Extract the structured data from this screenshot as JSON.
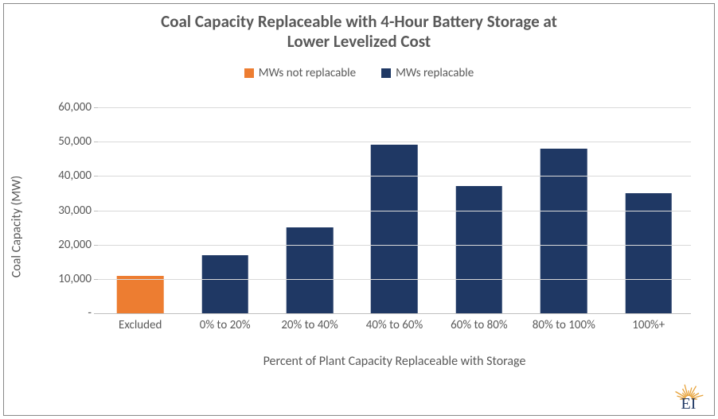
{
  "chart": {
    "type": "bar",
    "title_line1": "Coal Capacity Replaceable with 4-Hour Battery Storage at",
    "title_line2": "Lower Levelized Cost",
    "title_fontsize": 21,
    "title_color": "#595959",
    "ylabel": "Coal Capacity (MW)",
    "xlabel": "Percent of Plant Capacity Replaceable with Storage",
    "label_fontsize": 16,
    "tick_fontsize": 15,
    "legend_fontsize": 15,
    "text_color": "#595959",
    "background_color": "#ffffff",
    "grid_color": "#d9d9d9",
    "axis_color": "#bfbfbf",
    "ylim_min": 0,
    "ylim_max": 60000,
    "ytick_step": 10000,
    "yticks": [
      {
        "v": 0,
        "label": "-"
      },
      {
        "v": 10000,
        "label": "10,000"
      },
      {
        "v": 20000,
        "label": "20,000"
      },
      {
        "v": 30000,
        "label": "30,000"
      },
      {
        "v": 40000,
        "label": "40,000"
      },
      {
        "v": 50000,
        "label": "50,000"
      },
      {
        "v": 60000,
        "label": "60,000"
      }
    ],
    "bar_width_pct": 55,
    "legend": {
      "not_replacable": {
        "label": "MWs not replacable",
        "color": "#ed7d31"
      },
      "replacable": {
        "label": "MWs replacable",
        "color": "#1f3864"
      }
    },
    "categories": [
      {
        "label": "Excluded",
        "value": 11000,
        "series": "not_replacable"
      },
      {
        "label": "0% to 20%",
        "value": 17000,
        "series": "replacable"
      },
      {
        "label": "20% to 40%",
        "value": 25000,
        "series": "replacable"
      },
      {
        "label": "40% to 60%",
        "value": 49000,
        "series": "replacable"
      },
      {
        "label": "60% to 80%",
        "value": 37000,
        "series": "replacable"
      },
      {
        "label": "80% to 100%",
        "value": 48000,
        "series": "replacable"
      },
      {
        "label": "100%+",
        "value": 35000,
        "series": "replacable"
      }
    ]
  },
  "logo": {
    "text": "EI",
    "text_color": "#1f3864",
    "ray_color": "#e7a23a"
  }
}
